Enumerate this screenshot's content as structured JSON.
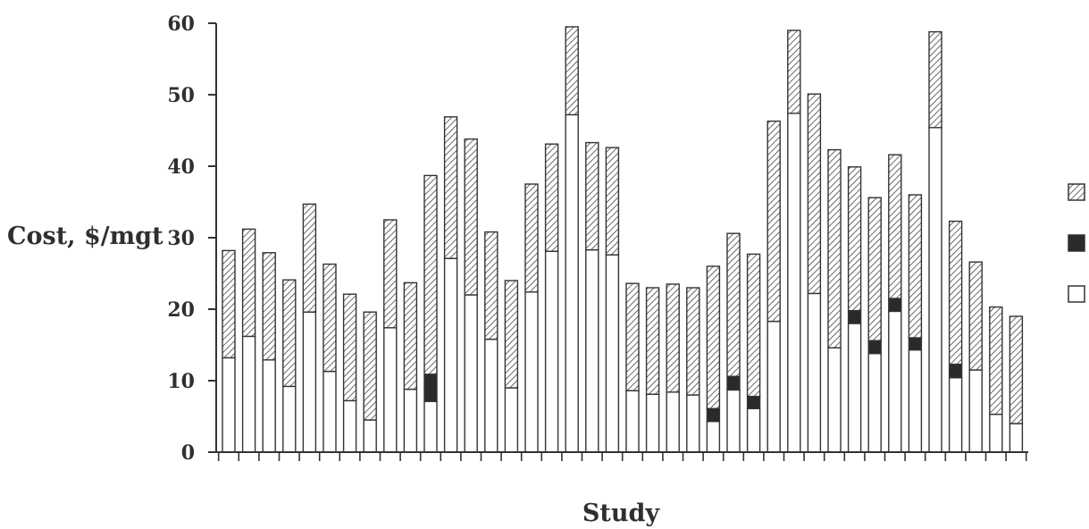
{
  "chart_data": {
    "type": "bar",
    "stacked": true,
    "title": "",
    "xlabel": "Study",
    "ylabel": "Cost, $/mgt",
    "ylim": [
      0,
      60
    ],
    "yticks": [
      0,
      10,
      20,
      30,
      40,
      50,
      60
    ],
    "grid": false,
    "legend_position": "right",
    "categories_count": 40,
    "series": [
      {
        "pattern": "white",
        "color": "#ffffff",
        "values": [
          13.2,
          16.2,
          12.9,
          9.2,
          19.6,
          11.3,
          7.2,
          4.5,
          17.4,
          8.8,
          7.1,
          27.1,
          22.0,
          15.8,
          9.0,
          22.4,
          28.1,
          47.2,
          28.3,
          27.6,
          8.6,
          8.1,
          8.4,
          8.0,
          4.3,
          8.7,
          6.1,
          18.3,
          47.4,
          22.2,
          14.6,
          18.0,
          13.8,
          19.7,
          14.3,
          45.4,
          10.4,
          11.5,
          5.3,
          4.0
        ]
      },
      {
        "pattern": "black",
        "color": "#2a2a2a",
        "values": [
          0,
          0,
          0,
          0,
          0,
          0,
          0,
          0,
          0,
          0,
          3.8,
          0,
          0,
          0,
          0,
          0,
          0,
          0,
          0,
          0,
          0,
          0,
          0,
          0,
          1.8,
          1.9,
          1.7,
          0,
          0,
          0,
          0,
          1.8,
          1.8,
          1.8,
          1.7,
          0,
          1.9,
          0,
          0,
          0
        ]
      },
      {
        "pattern": "hatched",
        "color": "#9a9a9a",
        "values": [
          15.0,
          15.0,
          15.0,
          14.9,
          15.1,
          15.0,
          14.9,
          15.1,
          15.1,
          14.9,
          27.8,
          19.8,
          21.8,
          15.0,
          15.0,
          15.1,
          15.0,
          12.3,
          15.0,
          15.0,
          15.0,
          14.9,
          15.1,
          15.0,
          19.9,
          20.0,
          19.9,
          28.0,
          11.6,
          27.9,
          27.7,
          20.1,
          20.0,
          20.1,
          20.0,
          13.4,
          20.0,
          15.1,
          15.0,
          15.0
        ]
      }
    ]
  }
}
